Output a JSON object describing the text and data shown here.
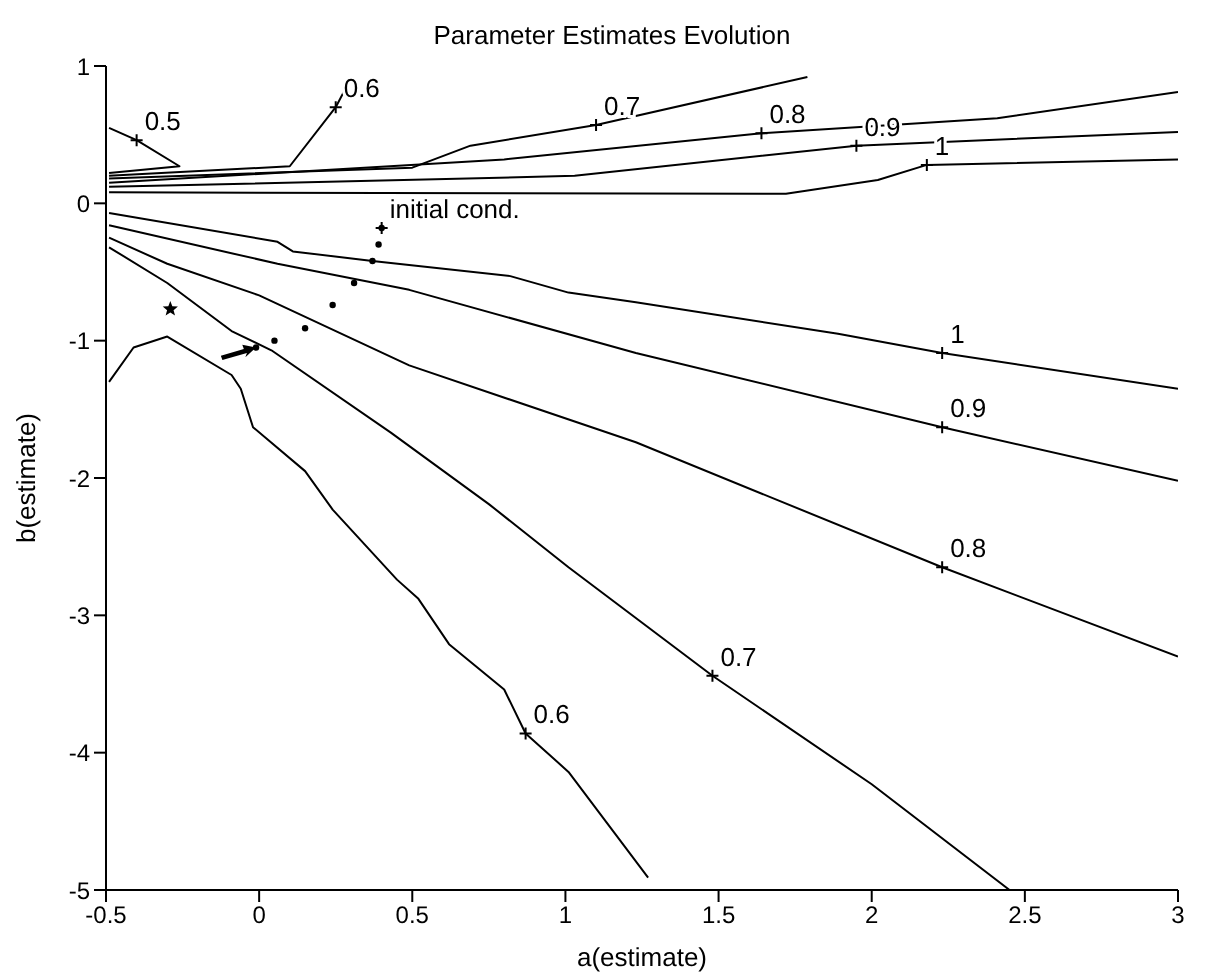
{
  "chart_data": {
    "type": "line",
    "title": "Parameter Estimates Evolution",
    "xlabel": "a(estimate)",
    "ylabel": "b(estimate)",
    "xlim": [
      -0.5,
      3
    ],
    "ylim": [
      -5,
      1
    ],
    "xticks": [
      -0.5,
      0,
      0.5,
      1,
      1.5,
      2,
      2.5,
      3
    ],
    "yticks": [
      -5,
      -4,
      -3,
      -2,
      -1,
      0,
      1
    ],
    "grid": false,
    "marker": "none",
    "line_style": "solid",
    "series": [
      {
        "color": "#000000",
        "x": [
          -0.49,
          -0.4,
          -0.26,
          -0.49
        ],
        "values": [
          0.55,
          0.46,
          0.27,
          0.22
        ]
      },
      {
        "color": "#000000",
        "x": [
          -0.49,
          0.1,
          0.25,
          0.29
        ],
        "values": [
          0.2,
          0.27,
          0.7,
          0.87
        ]
      },
      {
        "color": "#000000",
        "x": [
          -0.49,
          0.5,
          0.69,
          1.1,
          1.79
        ],
        "values": [
          0.18,
          0.26,
          0.42,
          0.57,
          0.92
        ]
      },
      {
        "color": "#000000",
        "x": [
          -0.49,
          0.8,
          1.64,
          2.41,
          3
        ],
        "values": [
          0.15,
          0.32,
          0.51,
          0.62,
          0.81
        ]
      },
      {
        "color": "#000000",
        "x": [
          -0.49,
          1.03,
          1.95,
          3
        ],
        "values": [
          0.12,
          0.2,
          0.42,
          0.52
        ]
      },
      {
        "color": "#000000",
        "x": [
          -0.49,
          1.72,
          2.02,
          2.18,
          3
        ],
        "values": [
          0.08,
          0.07,
          0.17,
          0.28,
          0.32
        ]
      },
      {
        "color": "#000000",
        "x": [
          -0.49,
          0.06,
          0.11,
          0.37,
          0.82,
          1.01,
          1.23,
          1.89,
          2.23,
          3
        ],
        "values": [
          -0.07,
          -0.28,
          -0.35,
          -0.42,
          -0.53,
          -0.65,
          -0.72,
          -0.95,
          -1.09,
          -1.35
        ]
      },
      {
        "color": "#000000",
        "x": [
          -0.49,
          0.06,
          0.49,
          1.23,
          2.23,
          3
        ],
        "values": [
          -0.16,
          -0.44,
          -0.63,
          -1.09,
          -1.63,
          -2.02
        ]
      },
      {
        "color": "#000000",
        "x": [
          -0.49,
          -0.3,
          0,
          0.49,
          1.23,
          2.23,
          3
        ],
        "values": [
          -0.25,
          -0.44,
          -0.67,
          -1.18,
          -1.74,
          -2.65,
          -3.3
        ]
      },
      {
        "color": "#000000",
        "x": [
          -0.49,
          -0.3,
          -0.09,
          0.04,
          0.43,
          0.75,
          1.01,
          1.48,
          2,
          2.45
        ],
        "values": [
          -0.32,
          -0.58,
          -0.93,
          -1.07,
          -1.67,
          -2.19,
          -2.65,
          -3.44,
          -4.23,
          -5
        ]
      },
      {
        "color": "#000000",
        "x": [
          -0.49,
          -0.41,
          -0.3,
          -0.09,
          -0.06,
          -0.02,
          0.15,
          0.24,
          0.45,
          0.52,
          0.62,
          0.8,
          0.87,
          1.01,
          1.27
        ],
        "values": [
          -1.3,
          -1.05,
          -0.97,
          -1.25,
          -1.35,
          -1.63,
          -1.95,
          -2.23,
          -2.74,
          -2.88,
          -3.21,
          -3.54,
          -3.86,
          -4.14,
          -4.91
        ]
      },
      {
        "type": "scatter",
        "color": "#000000",
        "marker": "circle",
        "x": [
          0.4,
          0.39,
          0.37,
          0.31,
          0.24,
          0.15,
          0.05,
          -0.01
        ],
        "values": [
          -0.18,
          -0.3,
          -0.42,
          -0.58,
          -0.74,
          -0.91,
          -1,
          -1.05
        ]
      },
      {
        "type": "scatter",
        "color": "#000000",
        "marker": "star",
        "x": [
          -0.29
        ],
        "values": [
          -0.77
        ]
      }
    ],
    "annotations": [
      {
        "text": "0.5",
        "x": -0.4,
        "y": 0.46
      },
      {
        "text": "0.6",
        "x": 0.25,
        "y": 0.7
      },
      {
        "text": "0.7",
        "x": 1.1,
        "y": 0.57
      },
      {
        "text": "0.8",
        "x": 1.64,
        "y": 0.51
      },
      {
        "text": "0.9",
        "x": 1.95,
        "y": 0.42
      },
      {
        "text": "1",
        "x": 2.18,
        "y": 0.28
      },
      {
        "text": "1",
        "x": 2.23,
        "y": -1.09
      },
      {
        "text": "0.9",
        "x": 2.23,
        "y": -1.63
      },
      {
        "text": "0.8",
        "x": 2.23,
        "y": -2.65
      },
      {
        "text": "0.7",
        "x": 1.48,
        "y": -3.44
      },
      {
        "text": "0.6",
        "x": 0.87,
        "y": -3.86
      },
      {
        "text": "initial cond.",
        "x": 0.4,
        "y": -0.18
      }
    ]
  }
}
